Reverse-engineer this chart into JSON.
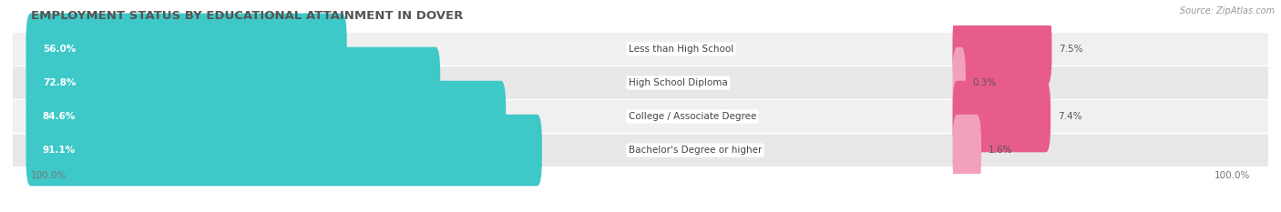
{
  "title": "EMPLOYMENT STATUS BY EDUCATIONAL ATTAINMENT IN DOVER",
  "source": "Source: ZipAtlas.com",
  "categories": [
    "Less than High School",
    "High School Diploma",
    "College / Associate Degree",
    "Bachelor's Degree or higher"
  ],
  "labor_force": [
    56.0,
    72.8,
    84.6,
    91.1
  ],
  "unemployed": [
    7.5,
    0.3,
    7.4,
    1.6
  ],
  "labor_force_color": "#3ec8c8",
  "unemployed_colors": [
    "#e85c8a",
    "#f2a0be",
    "#e85c8a",
    "#f2a0be"
  ],
  "row_bg_colors": [
    "#f0f0f0",
    "#e8e8e8"
  ],
  "legend_labor_color": "#3ec8c8",
  "legend_unemployed_color": "#e85c8a",
  "figure_bg": "#ffffff",
  "title_color": "#555555",
  "source_color": "#999999"
}
